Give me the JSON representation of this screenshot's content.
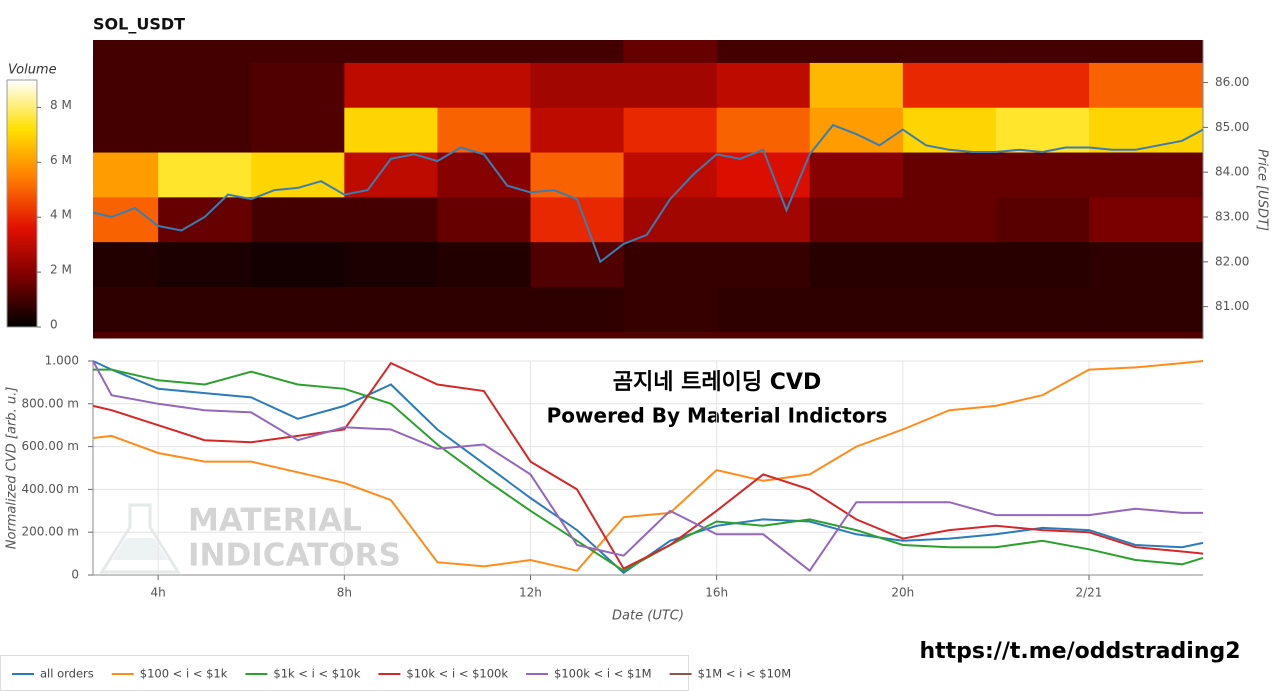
{
  "chart_data": [
    {
      "type": "heatmap",
      "title": "SOL_USDT",
      "x_edges": [
        2.6,
        4,
        6,
        8,
        10,
        12,
        14,
        16,
        18,
        20,
        22,
        24,
        26.45
      ],
      "y_edges": [
        80.3,
        80.45,
        81.45,
        82.45,
        83.45,
        84.45,
        85.45,
        86.45,
        86.95
      ],
      "z": [
        [
          1.2,
          1.2,
          1.2,
          1.2,
          1.2,
          1.2,
          1.2,
          1.2,
          1.2,
          1.2,
          1.2,
          1.2
        ],
        [
          0.7,
          0.7,
          0.7,
          0.7,
          0.7,
          0.7,
          0.8,
          0.7,
          0.7,
          0.7,
          0.7,
          0.7
        ],
        [
          0.5,
          0.4,
          0.3,
          0.4,
          0.5,
          1.2,
          0.8,
          0.8,
          0.6,
          0.6,
          0.6,
          0.7
        ],
        [
          5,
          1.5,
          1,
          1,
          1.5,
          4,
          2.5,
          2.5,
          1.5,
          1.5,
          1.3,
          1.8
        ],
        [
          6,
          7.5,
          7,
          3,
          2,
          5,
          3,
          3.5,
          2,
          1.5,
          1.5,
          1.5
        ],
        [
          1,
          1,
          1.2,
          7,
          5,
          3,
          4,
          5,
          6,
          7,
          7.5,
          7
        ],
        [
          1,
          1,
          1.2,
          3,
          3,
          2.5,
          2.5,
          3,
          6.5,
          4,
          4,
          5
        ],
        [
          1,
          1,
          1,
          1,
          1,
          1,
          1.5,
          1,
          1,
          1,
          1,
          1
        ]
      ],
      "colormap": [
        "#000000",
        "#7a0000",
        "#e01000",
        "#ff7a00",
        "#ffe000",
        "#ffffff"
      ],
      "zlim": [
        0,
        9
      ],
      "colorbar": {
        "label": "Volume",
        "ticks": [
          0,
          {
            "value": 2,
            "label": "2 M"
          },
          {
            "value": 4,
            "label": "4 M"
          },
          {
            "value": 6,
            "label": "6 M"
          },
          {
            "value": 8,
            "label": "8 M"
          }
        ]
      },
      "xlim": [
        2.6,
        26.45
      ],
      "ylim": [
        80.3,
        86.95
      ],
      "yticks": [
        {
          "value": 81,
          "label": "81.00"
        },
        {
          "value": 82,
          "label": "82.00"
        },
        {
          "value": 83,
          "label": "83.00"
        },
        {
          "value": 84,
          "label": "84.00"
        },
        {
          "value": 85,
          "label": "85.00"
        },
        {
          "value": 86,
          "label": "86.00"
        }
      ],
      "y_label": "Price [USDT]",
      "price": {
        "color": "#3a7db5",
        "x": [
          2.6,
          3,
          3.5,
          4,
          4.5,
          5,
          5.5,
          6,
          6.5,
          7,
          7.5,
          8,
          8.5,
          9,
          9.5,
          10,
          10.5,
          11,
          11.5,
          12,
          12.5,
          13,
          13.5,
          14,
          14.5,
          15,
          15.5,
          16,
          16.5,
          17,
          17.5,
          18,
          18.5,
          19,
          19.5,
          20,
          20.5,
          21,
          21.5,
          22,
          22.5,
          23,
          23.5,
          24,
          24.5,
          25,
          25.5,
          26,
          26.45
        ],
        "values": [
          83.1,
          83.0,
          83.2,
          82.8,
          82.7,
          83.0,
          83.5,
          83.4,
          83.6,
          83.65,
          83.8,
          83.5,
          83.6,
          84.3,
          84.4,
          84.25,
          84.55,
          84.4,
          83.7,
          83.55,
          83.6,
          83.4,
          82.0,
          82.4,
          82.6,
          83.4,
          83.95,
          84.4,
          84.3,
          84.5,
          83.15,
          84.4,
          85.05,
          84.85,
          84.6,
          84.95,
          84.6,
          84.5,
          84.45,
          84.45,
          84.5,
          84.45,
          84.55,
          84.55,
          84.5,
          84.5,
          84.6,
          84.7,
          84.95
        ]
      }
    },
    {
      "type": "line",
      "x": [
        2.6,
        3,
        4,
        5,
        6,
        7,
        8,
        9,
        10,
        11,
        12,
        13,
        14,
        15,
        16,
        17,
        18,
        19,
        20,
        21,
        22,
        23,
        24,
        25,
        26,
        26.45
      ],
      "series": [
        {
          "name": "all orders",
          "color": "#2b7bba",
          "values": [
            1.0,
            0.96,
            0.87,
            0.85,
            0.83,
            0.73,
            0.79,
            0.89,
            0.68,
            0.52,
            0.36,
            0.21,
            0.01,
            0.16,
            0.23,
            0.26,
            0.25,
            0.19,
            0.16,
            0.17,
            0.19,
            0.22,
            0.21,
            0.14,
            0.13,
            0.15
          ]
        },
        {
          "name": "$100 < i < $1k",
          "color": "#ff8c1a",
          "values": [
            0.64,
            0.65,
            0.57,
            0.53,
            0.53,
            0.48,
            0.43,
            0.35,
            0.06,
            0.04,
            0.07,
            0.02,
            0.27,
            0.29,
            0.49,
            0.44,
            0.47,
            0.6,
            0.68,
            0.77,
            0.79,
            0.84,
            0.96,
            0.97,
            0.99,
            1.0
          ]
        },
        {
          "name": "$1k < i < $10k",
          "color": "#2ca02c",
          "values": [
            0.96,
            0.96,
            0.91,
            0.89,
            0.95,
            0.89,
            0.87,
            0.8,
            0.61,
            0.45,
            0.3,
            0.16,
            0.02,
            0.14,
            0.25,
            0.23,
            0.26,
            0.21,
            0.14,
            0.13,
            0.13,
            0.16,
            0.12,
            0.07,
            0.05,
            0.08
          ]
        },
        {
          "name": "$10k < i < $100k",
          "color": "#d62728",
          "values": [
            0.79,
            0.77,
            0.7,
            0.63,
            0.62,
            0.65,
            0.68,
            0.99,
            0.89,
            0.86,
            0.53,
            0.4,
            0.03,
            0.14,
            0.3,
            0.47,
            0.4,
            0.26,
            0.17,
            0.21,
            0.23,
            0.21,
            0.2,
            0.13,
            0.11,
            0.1
          ]
        },
        {
          "name": "$100k < i < $1M",
          "color": "#9467bd",
          "values": [
            1.0,
            0.84,
            0.8,
            0.77,
            0.76,
            0.63,
            0.69,
            0.68,
            0.59,
            0.61,
            0.47,
            0.14,
            0.09,
            0.3,
            0.19,
            0.19,
            0.02,
            0.34,
            0.34,
            0.34,
            0.28,
            0.28,
            0.28,
            0.31,
            0.29,
            0.29
          ]
        },
        {
          "name": "$1M < i < $10M",
          "color": "#8c564b",
          "values": [
            null,
            null,
            null,
            null,
            null,
            null,
            null,
            null,
            null,
            null,
            null,
            null,
            null,
            null,
            null,
            null,
            null,
            null,
            null,
            null,
            null,
            null,
            null,
            null,
            null,
            null
          ]
        }
      ],
      "xlim": [
        2.6,
        26.45
      ],
      "xticks": [
        {
          "value": 4,
          "label": "4h"
        },
        {
          "value": 8,
          "label": "8h"
        },
        {
          "value": 12,
          "label": "12h"
        },
        {
          "value": 16,
          "label": "16h"
        },
        {
          "value": 20,
          "label": "20h"
        },
        {
          "value": 24,
          "label": "2/21"
        }
      ],
      "ylim": [
        0,
        1
      ],
      "yticks": [
        0,
        {
          "value": 0.2,
          "label": "200.00 m"
        },
        {
          "value": 0.4,
          "label": "400.00 m"
        },
        {
          "value": 0.6,
          "label": "600.00 m"
        },
        {
          "value": 0.8,
          "label": "800.00 m"
        },
        {
          "value": 1,
          "label": "1.000"
        }
      ],
      "x_label": "Date (UTC)",
      "y_label": "Normalized CVD [arb. u.]",
      "annotations": [
        "곰지네 트레이딩 CVD",
        "Powered By Material Indictors"
      ],
      "grid": true,
      "legend": "bottom-left"
    }
  ],
  "watermark": [
    "MATERIAL",
    "INDICATORS"
  ],
  "footer_url": "https://t.me/oddstrading2"
}
